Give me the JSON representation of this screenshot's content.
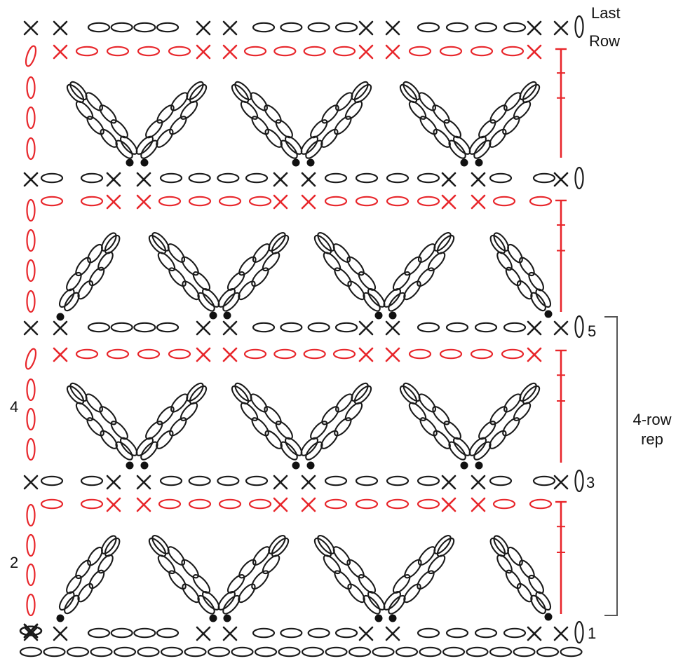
{
  "labels": {
    "last_row_line1": "Last",
    "last_row_line2": "Row",
    "row_1": "1",
    "row_2": "2",
    "row_3": "3",
    "row_4": "4",
    "row_5": "5",
    "rep_line1": "4-row",
    "rep_line2": "rep"
  },
  "colors": {
    "odd_rows": "#1a1a1a",
    "even_rows": "#e8262b",
    "bracket": "#555555"
  },
  "symbols": {
    "single_crochet": "x-mark",
    "chain": "oval",
    "cluster_base": "dot",
    "long_chain_loop": "elongated-petal"
  }
}
